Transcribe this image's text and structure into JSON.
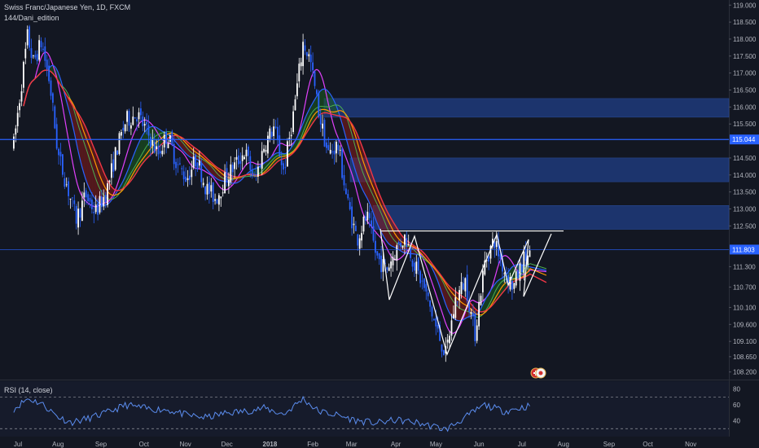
{
  "header": {
    "title": "Swiss Franc/Japanese Yen, 1D, FXCM",
    "indicator": "144/Dani_edition"
  },
  "rsi": {
    "label": "RSI (14, close)",
    "scale": [
      80.0,
      60.0,
      40.0
    ],
    "bands": [
      70,
      30
    ]
  },
  "price_badges": [
    {
      "value": "115.044",
      "color": "#2962ff"
    },
    {
      "value": "111.803",
      "color": "#2962ff"
    }
  ],
  "chart_data": {
    "type": "candlestick",
    "title": "Swiss Franc/Japanese Yen, 1D, FXCM",
    "ylim": [
      108.0,
      119.15
    ],
    "y_ticks": [
      "119.000",
      "118.500",
      "118.000",
      "117.500",
      "117.000",
      "116.500",
      "116.000",
      "115.500",
      "115.044",
      "114.500",
      "114.000",
      "113.500",
      "113.000",
      "112.500",
      "111.803",
      "111.300",
      "110.700",
      "110.100",
      "109.600",
      "109.100",
      "108.650",
      "108.200"
    ],
    "x_ticks": [
      "Jul",
      "Aug",
      "Sep",
      "Oct",
      "Nov",
      "Dec",
      "2018",
      "Feb",
      "Mar",
      "Apr",
      "May",
      "Jun",
      "Jul",
      "Aug",
      "Sep",
      "Oct",
      "Nov"
    ],
    "horizontal_lines": [
      115.044,
      111.803
    ],
    "supply_zones": [
      [
        115.7,
        116.25
      ],
      [
        113.8,
        114.5
      ],
      [
        112.4,
        113.1
      ]
    ],
    "neckline": 112.35,
    "pattern": "inverse head and shoulders",
    "close_trend": [
      [
        "2017-06-30",
        114.9
      ],
      [
        "2017-07-05",
        116.5
      ],
      [
        "2017-07-10",
        118.1
      ],
      [
        "2017-07-14",
        117.3
      ],
      [
        "2017-07-20",
        117.9
      ],
      [
        "2017-07-26",
        116.7
      ],
      [
        "2017-08-01",
        114.6
      ],
      [
        "2017-08-08",
        113.6
      ],
      [
        "2017-08-14",
        112.7
      ],
      [
        "2017-08-21",
        113.4
      ],
      [
        "2017-08-28",
        112.9
      ],
      [
        "2017-09-05",
        113.5
      ],
      [
        "2017-09-12",
        114.7
      ],
      [
        "2017-09-19",
        115.6
      ],
      [
        "2017-09-27",
        115.8
      ],
      [
        "2017-10-05",
        115.2
      ],
      [
        "2017-10-12",
        114.6
      ],
      [
        "2017-10-19",
        115.2
      ],
      [
        "2017-10-26",
        114.3
      ],
      [
        "2017-11-02",
        113.9
      ],
      [
        "2017-11-09",
        114.5
      ],
      [
        "2017-11-16",
        113.6
      ],
      [
        "2017-11-23",
        113.3
      ],
      [
        "2017-11-30",
        113.9
      ],
      [
        "2017-12-07",
        114.3
      ],
      [
        "2017-12-14",
        114.7
      ],
      [
        "2017-12-21",
        113.8
      ],
      [
        "2017-12-28",
        114.9
      ],
      [
        "2018-01-04",
        115.4
      ],
      [
        "2018-01-11",
        114.1
      ],
      [
        "2018-01-18",
        115.8
      ],
      [
        "2018-01-25",
        117.9
      ],
      [
        "2018-01-30",
        117.4
      ],
      [
        "2018-02-05",
        115.9
      ],
      [
        "2018-02-12",
        114.6
      ],
      [
        "2018-02-19",
        114.9
      ],
      [
        "2018-02-26",
        113.2
      ],
      [
        "2018-03-05",
        112.1
      ],
      [
        "2018-03-12",
        112.8
      ],
      [
        "2018-03-19",
        111.6
      ],
      [
        "2018-03-26",
        111.2
      ],
      [
        "2018-04-02",
        111.8
      ],
      [
        "2018-04-09",
        112.2
      ],
      [
        "2018-04-16",
        111.3
      ],
      [
        "2018-04-23",
        110.6
      ],
      [
        "2018-05-01",
        109.5
      ],
      [
        "2018-05-08",
        108.7
      ],
      [
        "2018-05-15",
        110.3
      ],
      [
        "2018-05-22",
        110.9
      ],
      [
        "2018-05-29",
        109.3
      ],
      [
        "2018-06-05",
        111.4
      ],
      [
        "2018-06-12",
        112.1
      ],
      [
        "2018-06-19",
        111.2
      ],
      [
        "2018-06-26",
        110.7
      ],
      [
        "2018-07-03",
        111.5
      ],
      [
        "2018-07-09",
        111.7
      ]
    ],
    "rsi_trend": [
      [
        "2017-06-30",
        55
      ],
      [
        "2017-07-10",
        68
      ],
      [
        "2017-07-20",
        62
      ],
      [
        "2017-08-01",
        45
      ],
      [
        "2017-08-10",
        38
      ],
      [
        "2017-08-21",
        42
      ],
      [
        "2017-09-05",
        50
      ],
      [
        "2017-09-19",
        60
      ],
      [
        "2017-10-05",
        55
      ],
      [
        "2017-10-19",
        54
      ],
      [
        "2017-11-02",
        47
      ],
      [
        "2017-11-16",
        44
      ],
      [
        "2017-12-01",
        50
      ],
      [
        "2017-12-14",
        52
      ],
      [
        "2017-12-28",
        56
      ],
      [
        "2018-01-11",
        48
      ],
      [
        "2018-01-25",
        68
      ],
      [
        "2018-02-05",
        52
      ],
      [
        "2018-02-19",
        47
      ],
      [
        "2018-03-05",
        40
      ],
      [
        "2018-03-19",
        37
      ],
      [
        "2018-04-02",
        41
      ],
      [
        "2018-04-16",
        38
      ],
      [
        "2018-05-01",
        32
      ],
      [
        "2018-05-08",
        29
      ],
      [
        "2018-05-22",
        44
      ],
      [
        "2018-06-05",
        60
      ],
      [
        "2018-06-19",
        52
      ],
      [
        "2018-07-03",
        57
      ],
      [
        "2018-07-09",
        60
      ]
    ]
  }
}
